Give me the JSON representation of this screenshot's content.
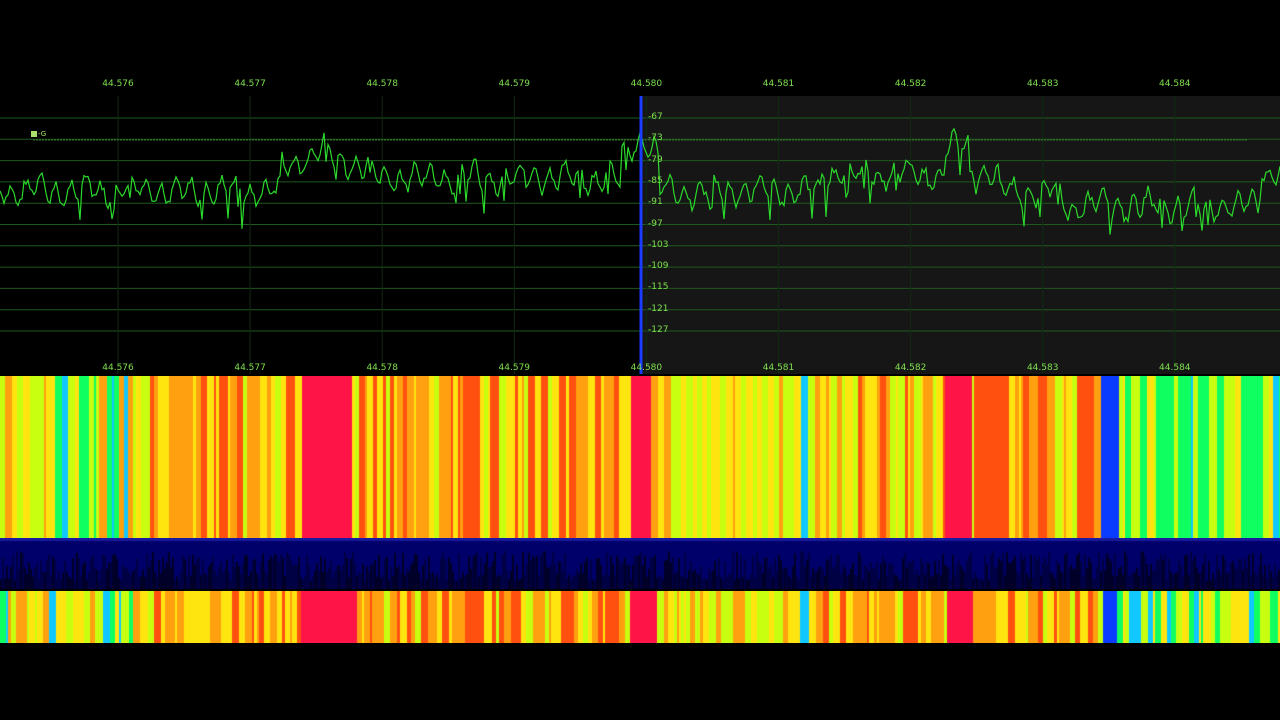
{
  "frequency_axis": {
    "labels": [
      "44.576",
      "44.577",
      "44.578",
      "44.579",
      "44.580",
      "44.581",
      "44.582",
      "44.583",
      "44.584"
    ]
  },
  "spectrum": {
    "db_labels": [
      "-67",
      "-73",
      "-79",
      "-85",
      "-91",
      "-97",
      "-103",
      "-109",
      "-115",
      "-121",
      "-127"
    ],
    "marker_label": "-G",
    "center_frequency": "44.580",
    "trace_color": "#2bd92b",
    "grid_color": "#1d5a1d",
    "cursor_color": "#1a3cff"
  },
  "colors": {
    "waterfall_palette": [
      "#0a3cff",
      "#10c8ff",
      "#10ff60",
      "#c8ff10",
      "#ffe510",
      "#ffa010",
      "#ff5010",
      "#ff1448"
    ],
    "activity_strip": "#00006a"
  }
}
